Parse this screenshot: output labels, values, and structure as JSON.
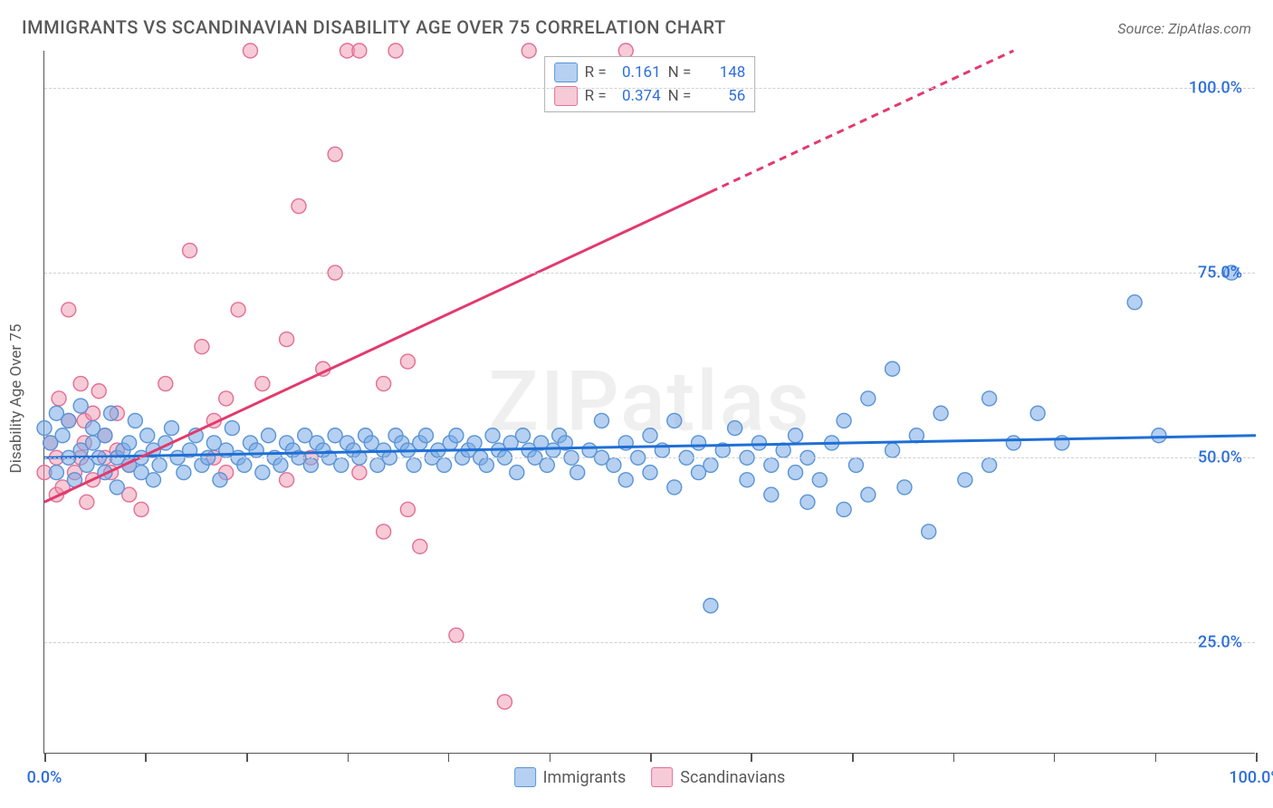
{
  "header": {
    "title": "IMMIGRANTS VS SCANDINAVIAN DISABILITY AGE OVER 75 CORRELATION CHART",
    "source": "Source: ZipAtlas.com"
  },
  "watermark": "ZIPatlas",
  "chart": {
    "type": "scatter",
    "ylabel": "Disability Age Over 75",
    "xlim": [
      0,
      100
    ],
    "ylim": [
      10,
      105
    ],
    "y_gridlines": [
      25,
      50,
      75,
      100
    ],
    "y_tick_labels": [
      "25.0%",
      "50.0%",
      "75.0%",
      "100.0%"
    ],
    "x_ticks": [
      0,
      8.33,
      16.67,
      25,
      33.33,
      41.67,
      50,
      58.33,
      66.67,
      75,
      83.33,
      91.67,
      100
    ],
    "x_tick_labels": {
      "0": "0.0%",
      "100": "100.0%"
    },
    "background_color": "#ffffff",
    "grid_color": "#cfcfcf",
    "axis_color": "#555555",
    "marker_radius": 8,
    "marker_stroke_width": 1.4,
    "trend_line_width": 3,
    "series": [
      {
        "name": "Immigrants",
        "fill": "rgba(120,170,230,0.55)",
        "stroke": "#5a94d6",
        "line_color": "#1f6fd6",
        "trend": {
          "x1": 0,
          "y1": 50.0,
          "x2": 100,
          "y2": 53.0,
          "dashed_from_x": null
        },
        "r": "0.161",
        "n": "148",
        "points": [
          [
            0,
            54
          ],
          [
            0.5,
            52
          ],
          [
            1,
            56
          ],
          [
            1,
            48
          ],
          [
            1.5,
            53
          ],
          [
            2,
            50
          ],
          [
            2,
            55
          ],
          [
            2.5,
            47
          ],
          [
            3,
            51
          ],
          [
            3,
            57
          ],
          [
            3.5,
            49
          ],
          [
            4,
            52
          ],
          [
            4,
            54
          ],
          [
            4.5,
            50
          ],
          [
            5,
            48
          ],
          [
            5,
            53
          ],
          [
            5.5,
            56
          ],
          [
            6,
            50
          ],
          [
            6,
            46
          ],
          [
            6.5,
            51
          ],
          [
            7,
            49
          ],
          [
            7,
            52
          ],
          [
            7.5,
            55
          ],
          [
            8,
            48
          ],
          [
            8,
            50
          ],
          [
            8.5,
            53
          ],
          [
            9,
            47
          ],
          [
            9,
            51
          ],
          [
            9.5,
            49
          ],
          [
            10,
            52
          ],
          [
            10.5,
            54
          ],
          [
            11,
            50
          ],
          [
            11.5,
            48
          ],
          [
            12,
            51
          ],
          [
            12.5,
            53
          ],
          [
            13,
            49
          ],
          [
            13.5,
            50
          ],
          [
            14,
            52
          ],
          [
            14.5,
            47
          ],
          [
            15,
            51
          ],
          [
            15.5,
            54
          ],
          [
            16,
            50
          ],
          [
            16.5,
            49
          ],
          [
            17,
            52
          ],
          [
            17.5,
            51
          ],
          [
            18,
            48
          ],
          [
            18.5,
            53
          ],
          [
            19,
            50
          ],
          [
            19.5,
            49
          ],
          [
            20,
            52
          ],
          [
            20.5,
            51
          ],
          [
            21,
            50
          ],
          [
            21.5,
            53
          ],
          [
            22,
            49
          ],
          [
            22.5,
            52
          ],
          [
            23,
            51
          ],
          [
            23.5,
            50
          ],
          [
            24,
            53
          ],
          [
            24.5,
            49
          ],
          [
            25,
            52
          ],
          [
            25.5,
            51
          ],
          [
            26,
            50
          ],
          [
            26.5,
            53
          ],
          [
            27,
            52
          ],
          [
            27.5,
            49
          ],
          [
            28,
            51
          ],
          [
            28.5,
            50
          ],
          [
            29,
            53
          ],
          [
            29.5,
            52
          ],
          [
            30,
            51
          ],
          [
            30.5,
            49
          ],
          [
            31,
            52
          ],
          [
            31.5,
            53
          ],
          [
            32,
            50
          ],
          [
            32.5,
            51
          ],
          [
            33,
            49
          ],
          [
            33.5,
            52
          ],
          [
            34,
            53
          ],
          [
            34.5,
            50
          ],
          [
            35,
            51
          ],
          [
            35.5,
            52
          ],
          [
            36,
            50
          ],
          [
            36.5,
            49
          ],
          [
            37,
            53
          ],
          [
            37.5,
            51
          ],
          [
            38,
            50
          ],
          [
            38.5,
            52
          ],
          [
            39,
            48
          ],
          [
            39.5,
            53
          ],
          [
            40,
            51
          ],
          [
            40.5,
            50
          ],
          [
            41,
            52
          ],
          [
            41.5,
            49
          ],
          [
            42,
            51
          ],
          [
            42.5,
            53
          ],
          [
            43,
            52
          ],
          [
            43.5,
            50
          ],
          [
            44,
            48
          ],
          [
            45,
            51
          ],
          [
            46,
            55
          ],
          [
            46,
            50
          ],
          [
            47,
            49
          ],
          [
            48,
            52
          ],
          [
            48,
            47
          ],
          [
            49,
            50
          ],
          [
            50,
            53
          ],
          [
            50,
            48
          ],
          [
            51,
            51
          ],
          [
            52,
            55
          ],
          [
            52,
            46
          ],
          [
            53,
            50
          ],
          [
            54,
            48
          ],
          [
            54,
            52
          ],
          [
            55,
            30
          ],
          [
            55,
            49
          ],
          [
            56,
            51
          ],
          [
            57,
            54
          ],
          [
            58,
            47
          ],
          [
            58,
            50
          ],
          [
            59,
            52
          ],
          [
            60,
            45
          ],
          [
            60,
            49
          ],
          [
            61,
            51
          ],
          [
            62,
            48
          ],
          [
            62,
            53
          ],
          [
            63,
            44
          ],
          [
            63,
            50
          ],
          [
            64,
            47
          ],
          [
            65,
            52
          ],
          [
            66,
            55
          ],
          [
            66,
            43
          ],
          [
            67,
            49
          ],
          [
            68,
            58
          ],
          [
            68,
            45
          ],
          [
            70,
            51
          ],
          [
            70,
            62
          ],
          [
            71,
            46
          ],
          [
            72,
            53
          ],
          [
            73,
            40
          ],
          [
            74,
            56
          ],
          [
            76,
            47
          ],
          [
            78,
            49
          ],
          [
            78,
            58
          ],
          [
            80,
            52
          ],
          [
            82,
            56
          ],
          [
            84,
            52
          ],
          [
            90,
            71
          ],
          [
            92,
            53
          ],
          [
            98,
            75
          ]
        ]
      },
      {
        "name": "Scandinavians",
        "fill": "rgba(240,150,175,0.50)",
        "stroke": "#e36f94",
        "line_color": "#e23a6e",
        "trend": {
          "x1": 0,
          "y1": 44.0,
          "x2": 80,
          "y2": 105.0,
          "dashed_from_x": 55
        },
        "r": "0.374",
        "n": "56",
        "points": [
          [
            0,
            48
          ],
          [
            0.5,
            52
          ],
          [
            1,
            45
          ],
          [
            1,
            50
          ],
          [
            1.2,
            58
          ],
          [
            1.5,
            46
          ],
          [
            2,
            55
          ],
          [
            2,
            70
          ],
          [
            2.5,
            48
          ],
          [
            3,
            50
          ],
          [
            3,
            60
          ],
          [
            3.3,
            52
          ],
          [
            3.3,
            55
          ],
          [
            3.5,
            44
          ],
          [
            4,
            56
          ],
          [
            4,
            47
          ],
          [
            4.5,
            59
          ],
          [
            5,
            50
          ],
          [
            5,
            53
          ],
          [
            5.5,
            48
          ],
          [
            6,
            51
          ],
          [
            6,
            56
          ],
          [
            7,
            45
          ],
          [
            7,
            49
          ],
          [
            8,
            43
          ],
          [
            10,
            60
          ],
          [
            12,
            78
          ],
          [
            13,
            65
          ],
          [
            14,
            50
          ],
          [
            14,
            55
          ],
          [
            15,
            48
          ],
          [
            15,
            58
          ],
          [
            16,
            70
          ],
          [
            17,
            105
          ],
          [
            18,
            60
          ],
          [
            20,
            66
          ],
          [
            20,
            47
          ],
          [
            21,
            84
          ],
          [
            22,
            50
          ],
          [
            23,
            62
          ],
          [
            24,
            91
          ],
          [
            24,
            75
          ],
          [
            25,
            105
          ],
          [
            26,
            48
          ],
          [
            26,
            105
          ],
          [
            28,
            40
          ],
          [
            28,
            60
          ],
          [
            29,
            105
          ],
          [
            30,
            43
          ],
          [
            30,
            63
          ],
          [
            31,
            38
          ],
          [
            34,
            26
          ],
          [
            38,
            17
          ],
          [
            40,
            105
          ],
          [
            48,
            105
          ]
        ]
      }
    ]
  },
  "legend_inset": {
    "r_label": "R =",
    "n_label": "N ="
  },
  "bottom_legend": [
    {
      "label": "Immigrants",
      "fill": "rgba(120,170,230,0.55)",
      "stroke": "#5a94d6"
    },
    {
      "label": "Scandinavians",
      "fill": "rgba(240,150,175,0.50)",
      "stroke": "#e36f94"
    }
  ],
  "value_color": "#2e6fdb",
  "xlabel_color": "#2e6fdb",
  "ylabel_color": "#2e6fdb"
}
